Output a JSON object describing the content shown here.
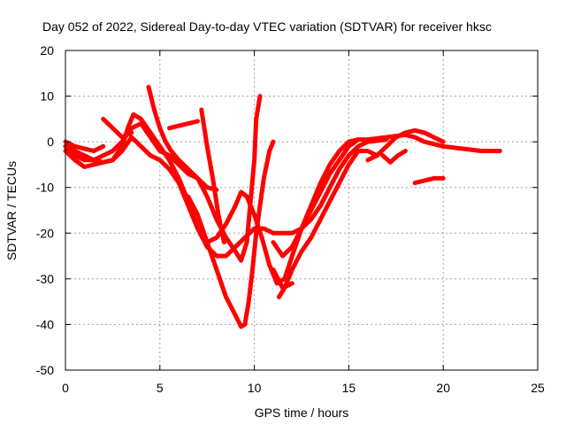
{
  "chart_data": {
    "type": "scatter",
    "title": "Day 052 of 2022, Sidereal Day-to-day VTEC variation (SDTVAR) for receiver hksc",
    "xlabel": "GPS time / hours",
    "ylabel": "SDTVAR / TECUs",
    "xlim": [
      0,
      25
    ],
    "ylim": [
      -50,
      20
    ],
    "x_ticks": [
      0,
      5,
      10,
      15,
      20,
      25
    ],
    "y_ticks": [
      -50,
      -40,
      -30,
      -20,
      -10,
      0,
      10,
      20
    ],
    "x_tick_labels": [
      "0",
      "5",
      "10",
      "15",
      "20",
      "25"
    ],
    "y_tick_labels": [
      "-50",
      "-40",
      "-30",
      "-20",
      "-10",
      "0",
      "10",
      "20"
    ],
    "grid": true,
    "marker": "+",
    "color": "#ff0000",
    "series": [
      {
        "name": "trace-1",
        "points": [
          [
            0,
            -1
          ],
          [
            0.5,
            -2
          ],
          [
            1,
            -3
          ],
          [
            1.5,
            -4
          ],
          [
            2,
            -4.5
          ],
          [
            2.5,
            -4
          ],
          [
            3,
            -1
          ],
          [
            3.3,
            3
          ],
          [
            3.6,
            6
          ],
          [
            4,
            5
          ],
          [
            4.5,
            2
          ],
          [
            5,
            -1
          ],
          [
            5.5,
            -4
          ],
          [
            6,
            -8
          ],
          [
            6.5,
            -13
          ],
          [
            7,
            -19
          ],
          [
            7.5,
            -22
          ],
          [
            8,
            -21
          ],
          [
            8.5,
            -18
          ],
          [
            9,
            -14
          ],
          [
            9.3,
            -11
          ],
          [
            9.6,
            -12
          ],
          [
            10,
            -16
          ],
          [
            10.4,
            -21
          ],
          [
            10.8,
            -27
          ],
          [
            11.2,
            -31
          ],
          [
            11.6,
            -30
          ],
          [
            12,
            -25
          ],
          [
            12.5,
            -19
          ],
          [
            13,
            -14
          ],
          [
            13.5,
            -9
          ],
          [
            14,
            -5
          ],
          [
            14.5,
            -2
          ],
          [
            15,
            0
          ],
          [
            15.5,
            0.5
          ],
          [
            16,
            0.5
          ],
          [
            17,
            1
          ],
          [
            18,
            1.5
          ],
          [
            18.5,
            1
          ],
          [
            19,
            0
          ],
          [
            20,
            -1
          ],
          [
            21,
            -1.5
          ],
          [
            22,
            -2
          ],
          [
            23,
            -2
          ]
        ]
      },
      {
        "name": "trace-2",
        "points": [
          [
            0,
            -2
          ],
          [
            0.5,
            -4
          ],
          [
            1,
            -5.5
          ],
          [
            1.5,
            -5
          ],
          [
            2,
            -4.5
          ],
          [
            2.5,
            -4
          ],
          [
            3,
            -2
          ],
          [
            3.5,
            1
          ],
          [
            4,
            -1
          ],
          [
            4.5,
            -3
          ],
          [
            5,
            -4
          ],
          [
            5.5,
            -6
          ],
          [
            6,
            -9
          ],
          [
            6.5,
            -14
          ],
          [
            7,
            -19
          ],
          [
            7.5,
            -23
          ],
          [
            8,
            -25
          ],
          [
            8.5,
            -25
          ],
          [
            9,
            -23
          ],
          [
            9.5,
            -21
          ],
          [
            10,
            -19
          ],
          [
            10.5,
            -19
          ],
          [
            11,
            -20
          ],
          [
            11.5,
            -20
          ],
          [
            12,
            -20
          ],
          [
            12.5,
            -19
          ],
          [
            13,
            -17
          ],
          [
            13.5,
            -14
          ],
          [
            14,
            -10
          ],
          [
            14.5,
            -6
          ],
          [
            15,
            -3
          ],
          [
            15.5,
            -1
          ],
          [
            16,
            0
          ],
          [
            17,
            0.5
          ]
        ]
      },
      {
        "name": "trace-3",
        "points": [
          [
            0,
            -1
          ],
          [
            0.5,
            -3
          ],
          [
            1,
            -4
          ],
          [
            1.5,
            -4
          ],
          [
            2,
            -3
          ],
          [
            2.5,
            -2
          ],
          [
            3,
            0
          ],
          [
            3.5,
            3
          ],
          [
            4,
            4
          ],
          [
            4.5,
            1
          ],
          [
            5,
            -2
          ],
          [
            5.5,
            -3
          ],
          [
            6,
            -5
          ],
          [
            6.5,
            -7
          ],
          [
            7,
            -8
          ],
          [
            7.5,
            -10
          ],
          [
            8,
            -10.5
          ]
        ]
      },
      {
        "name": "trace-4",
        "points": [
          [
            6.5,
            -12
          ],
          [
            7,
            -16
          ],
          [
            7.5,
            -22
          ],
          [
            8,
            -28
          ],
          [
            8.5,
            -34
          ],
          [
            9,
            -38
          ],
          [
            9.3,
            -40.5
          ],
          [
            9.5,
            -40
          ],
          [
            9.7,
            -35
          ],
          [
            9.9,
            -28
          ],
          [
            10.1,
            -20
          ],
          [
            10.3,
            -14
          ],
          [
            10.5,
            -8
          ],
          [
            10.8,
            -2
          ],
          [
            11,
            0
          ]
        ]
      },
      {
        "name": "trace-5",
        "points": [
          [
            4.4,
            12
          ],
          [
            4.7,
            7
          ],
          [
            5,
            3
          ],
          [
            5.3,
            0
          ],
          [
            5.6,
            -2
          ],
          [
            6,
            -4
          ],
          [
            6.5,
            -6
          ],
          [
            7,
            -8
          ],
          [
            7.5,
            -12
          ],
          [
            8,
            -17
          ],
          [
            8.5,
            -21
          ],
          [
            9,
            -24
          ],
          [
            9.3,
            -26
          ],
          [
            9.6,
            -22
          ],
          [
            9.8,
            -13
          ],
          [
            10,
            -4
          ],
          [
            10.1,
            5
          ],
          [
            10.3,
            10
          ]
        ]
      },
      {
        "name": "trace-6",
        "points": [
          [
            7.2,
            7
          ],
          [
            7.5,
            -1
          ],
          [
            7.8,
            -8
          ],
          [
            8.1,
            -16
          ],
          [
            8.4,
            -22
          ]
        ]
      },
      {
        "name": "trace-7",
        "points": [
          [
            11,
            -22
          ],
          [
            11.5,
            -25
          ],
          [
            12,
            -23
          ],
          [
            12.5,
            -19
          ],
          [
            13,
            -15
          ],
          [
            13.5,
            -11
          ],
          [
            14,
            -7
          ],
          [
            14.5,
            -4
          ],
          [
            15,
            -1
          ],
          [
            15.5,
            0.5
          ]
        ]
      },
      {
        "name": "trace-8",
        "points": [
          [
            11,
            -28
          ],
          [
            11.5,
            -32
          ],
          [
            12,
            -31
          ]
        ]
      },
      {
        "name": "trace-9",
        "points": [
          [
            11.3,
            -34
          ],
          [
            11.6,
            -32
          ],
          [
            12,
            -28
          ],
          [
            12.5,
            -24
          ],
          [
            13,
            -21
          ],
          [
            13.5,
            -17
          ],
          [
            14,
            -13
          ],
          [
            14.5,
            -9
          ],
          [
            15,
            -5
          ],
          [
            15.5,
            -2
          ],
          [
            16,
            -2
          ],
          [
            16.5,
            -3
          ]
        ]
      },
      {
        "name": "trace-10",
        "points": [
          [
            5.5,
            3
          ],
          [
            6,
            3.5
          ],
          [
            6.5,
            4
          ],
          [
            7,
            4.5
          ]
        ]
      },
      {
        "name": "trace-11",
        "points": [
          [
            2,
            5
          ],
          [
            2.5,
            3
          ],
          [
            3,
            1
          ],
          [
            3.5,
            2
          ]
        ]
      },
      {
        "name": "trace-12",
        "points": [
          [
            16,
            -4
          ],
          [
            16.5,
            -3
          ],
          [
            17,
            -1
          ],
          [
            17.5,
            1
          ],
          [
            18,
            2
          ],
          [
            18.5,
            2.5
          ],
          [
            19,
            2
          ],
          [
            19.5,
            1
          ],
          [
            20,
            0
          ]
        ]
      },
      {
        "name": "trace-13",
        "points": [
          [
            16.8,
            -3
          ],
          [
            17.2,
            -4.5
          ],
          [
            17.6,
            -3
          ],
          [
            18,
            -2
          ]
        ]
      },
      {
        "name": "trace-14",
        "points": [
          [
            18.5,
            -9
          ],
          [
            19,
            -8.5
          ],
          [
            19.5,
            -8
          ],
          [
            20,
            -8
          ]
        ]
      },
      {
        "name": "trace-15",
        "points": [
          [
            0,
            0
          ],
          [
            0.5,
            -1
          ],
          [
            1,
            -1.5
          ],
          [
            1.5,
            -2
          ],
          [
            2,
            -1
          ]
        ]
      }
    ]
  }
}
